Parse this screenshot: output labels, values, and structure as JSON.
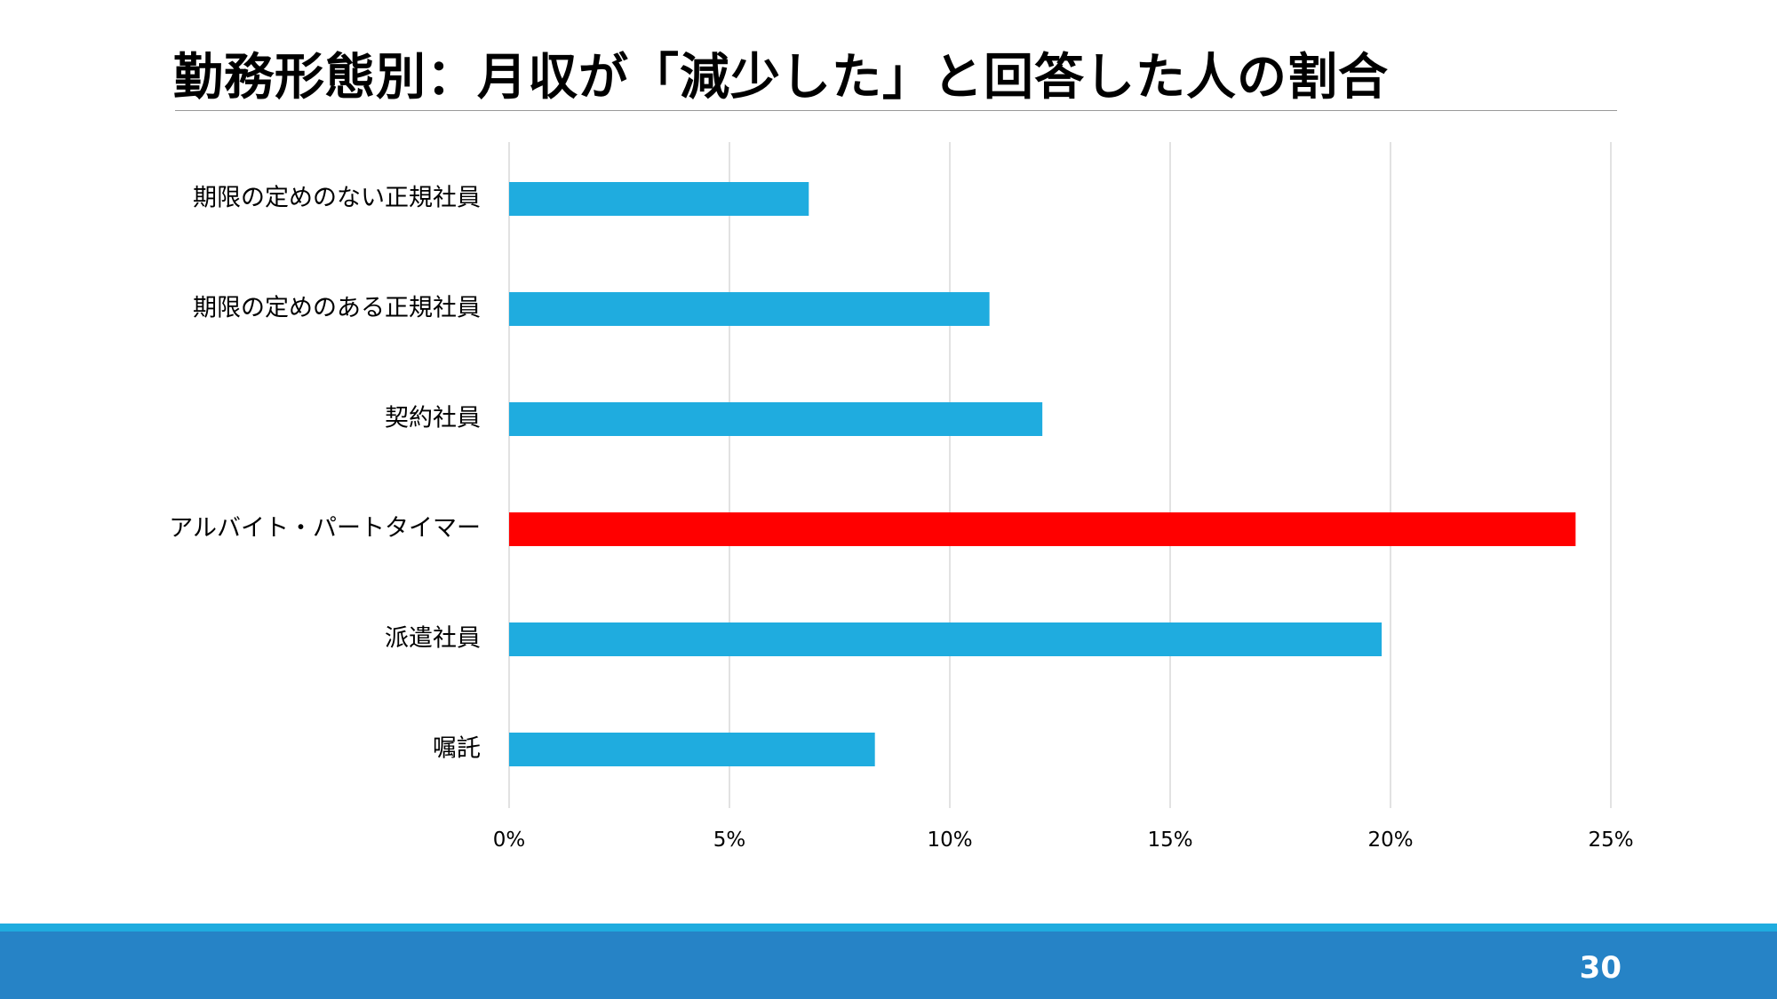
{
  "slide": {
    "title": "勤務形態別：月収が「減少した」と回答した人の割合",
    "page_number": "30"
  },
  "colors": {
    "bar_default": "#1facdf",
    "bar_highlight": "#ff0000",
    "gridline": "#d9d9d9",
    "footer_band": "#2683c6",
    "footer_stripe": "#1facdf"
  },
  "chart_data": {
    "type": "bar",
    "orientation": "horizontal",
    "title": "",
    "xlabel": "",
    "ylabel": "",
    "categories": [
      "期限の定めのない正規社員",
      "期限の定めのある正規社員",
      "契約社員",
      "アルバイト・パートタイマー",
      "派遣社員",
      "嘱託"
    ],
    "values": [
      6.8,
      10.9,
      12.1,
      24.2,
      19.8,
      8.3
    ],
    "highlight_category": "アルバイト・パートタイマー",
    "xlim": [
      0,
      25
    ],
    "x_ticks": [
      0,
      5,
      10,
      15,
      20,
      25
    ],
    "x_tick_labels": [
      "0%",
      "5%",
      "10%",
      "15%",
      "20%",
      "25%"
    ],
    "grid": true,
    "legend": "none"
  }
}
